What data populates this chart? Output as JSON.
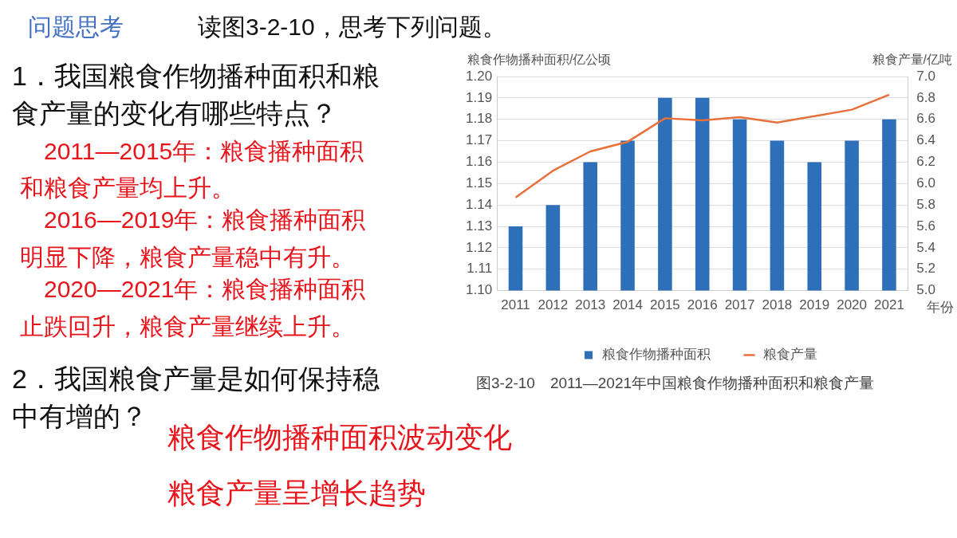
{
  "chart_data": {
    "type": "bar",
    "title": "问题思考",
    "subtitle": "读图3-2-10，思考下列问题。",
    "categories": [
      "2011",
      "2012",
      "2013",
      "2014",
      "2015",
      "2016",
      "2017",
      "2018",
      "2019",
      "2020",
      "2021"
    ],
    "xlabel": "年份",
    "ylabel": "粮食作物播种面积/亿公顷",
    "y2label": "粮食产量/亿吨",
    "series": [
      {
        "name": "粮食作物播种面积",
        "color": "#2e6fba",
        "values": [
          1.13,
          1.14,
          1.16,
          1.17,
          1.19,
          1.19,
          1.18,
          1.17,
          1.16,
          1.17,
          1.18
        ]
      },
      {
        "name": "粮食产量",
        "type": "line",
        "axis": "y2",
        "color": "#e8703a",
        "values": [
          5.87,
          6.12,
          6.3,
          6.39,
          6.61,
          6.59,
          6.62,
          6.57,
          6.63,
          6.69,
          6.83
        ]
      }
    ],
    "ylim": [
      1.1,
      1.2
    ],
    "yticks": [
      {
        "value": 1.1,
        "label": "1.10"
      },
      1.11,
      1.12,
      1.13,
      1.14,
      1.15,
      1.16,
      1.17,
      1.18,
      1.19,
      {
        "value": 1.2,
        "label": "1.20"
      }
    ],
    "y2lim": [
      5.0,
      7.0
    ],
    "y2ticks": [
      {
        "value": 5,
        "label": "5.0"
      },
      5.2,
      5.4,
      5.6,
      5.8,
      {
        "value": 6,
        "label": "6.0"
      },
      6.2,
      6.4,
      6.6,
      6.8,
      {
        "value": 7,
        "label": "7.0"
      }
    ],
    "grid": "y",
    "legend": "bottom",
    "marker": "none",
    "line_style": "solid",
    "annotations": [
      "1．我国粮食作物播种面积和粮",
      "食产量的变化有哪些特点？",
      "2011—2015年：粮食播种面积",
      "和粮食产量均上升。",
      "2016—2019年：粮食播种面积",
      "明显下降，粮食产量稳中有升。",
      "2020—2021年：粮食播种面积",
      "止跌回升，粮食产量继续上升。",
      "2．我国粮食产量是如何保持稳",
      "中有增的？",
      "粮食作物播种面积波动变化",
      "粮食产量呈增长趋势",
      "图3-2-10　2011—2021年中国粮食作物播种面积和粮食产量"
    ]
  }
}
